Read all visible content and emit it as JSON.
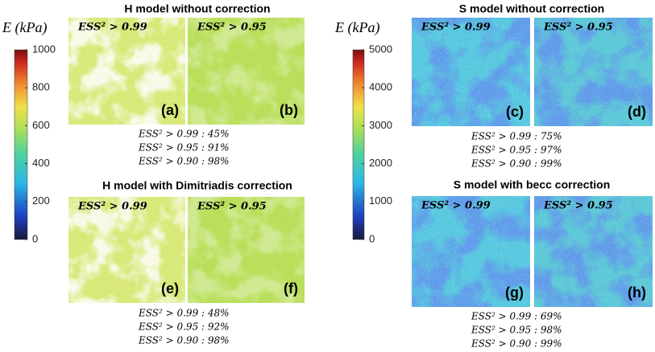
{
  "colorbars": [
    {
      "label": "E (kPa)",
      "ticks": [
        1000,
        800,
        600,
        400,
        200,
        0
      ]
    },
    {
      "label": "E (kPa)",
      "ticks": [
        5000,
        4000,
        3000,
        2000,
        1000,
        0
      ]
    }
  ],
  "groups": [
    {
      "title": "H model without correction",
      "panels": [
        {
          "threshold": "ESS² > 0.99",
          "label": "(a)"
        },
        {
          "threshold": "ESS² > 0.95",
          "label": "(b)"
        }
      ],
      "stats": [
        "ESS² > 0.99 : 45%",
        "ESS² > 0.95 : 91%",
        "ESS² > 0.90 : 98%"
      ]
    },
    {
      "title": "H model with Dimitriadis correction",
      "panels": [
        {
          "threshold": "ESS² > 0.99",
          "label": "(e)"
        },
        {
          "threshold": "ESS² > 0.95",
          "label": "(f)"
        }
      ],
      "stats": [
        "ESS² > 0.99 : 48%",
        "ESS² > 0.95 : 92%",
        "ESS² > 0.90 : 98%"
      ]
    },
    {
      "title": "S model without correction",
      "panels": [
        {
          "threshold": "ESS² > 0.99",
          "label": "(c)"
        },
        {
          "threshold": "ESS² > 0.95",
          "label": "(d)"
        }
      ],
      "stats": [
        "ESS² > 0.99 : 75%",
        "ESS² > 0.95 : 97%",
        "ESS² > 0.90 : 99%"
      ]
    },
    {
      "title": "S model with becc correction",
      "panels": [
        {
          "threshold": "ESS² > 0.99",
          "label": "(g)"
        },
        {
          "threshold": "ESS² > 0.95",
          "label": "(h)"
        }
      ],
      "stats": [
        "ESS² > 0.99 : 69%",
        "ESS² > 0.95 : 98%",
        "ESS² > 0.90 : 99%"
      ]
    }
  ]
}
